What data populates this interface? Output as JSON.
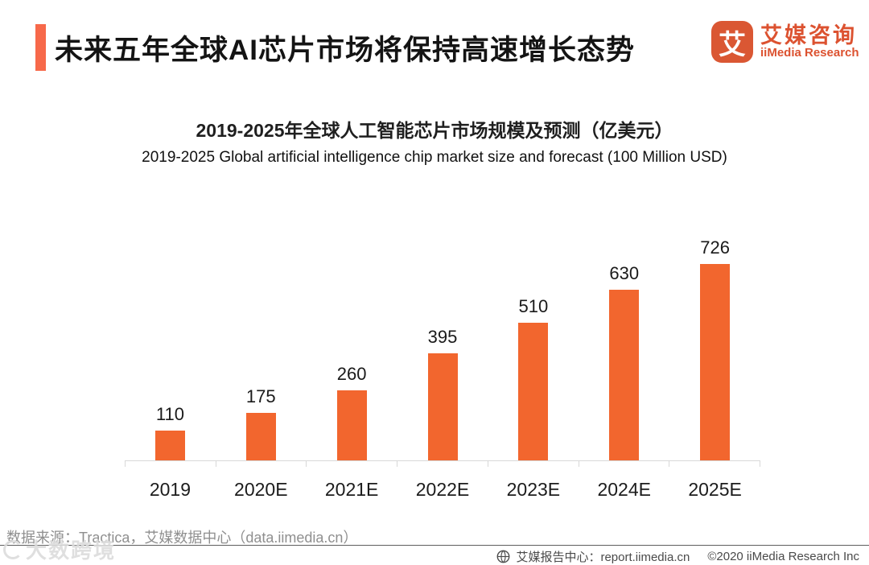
{
  "header": {
    "title": "未来五年全球AI芯片市场将保持高速增长态势",
    "logo": {
      "mark_glyph": "艾",
      "name_cn": "艾媒咨询",
      "name_en": "iiMedia Research"
    }
  },
  "chart_data": {
    "type": "bar",
    "title": "2019-2025年全球人工智能芯片市场规模及预测（亿美元）",
    "subtitle": "2019-2025 Global artificial intelligence chip market size and forecast (100 Million USD)",
    "categories": [
      "2019",
      "2020E",
      "2021E",
      "2022E",
      "2023E",
      "2024E",
      "2025E"
    ],
    "values": [
      110,
      175,
      260,
      395,
      510,
      630,
      726
    ],
    "ylim": [
      0,
      760
    ],
    "grid": "off",
    "legend": "none",
    "data_labels": "above bars",
    "bar_color": "#F2662E"
  },
  "footer": {
    "source": "数据来源：Tractica，艾媒数据中心（data.iimedia.cn）",
    "report_center": "艾媒报告中心：report.iimedia.cn",
    "copyright": "©2020   iiMedia Research  Inc",
    "watermark": "大数跨境"
  },
  "colors": {
    "accent_bar": "#F7694A",
    "logo_orange": "#DA5733",
    "bar_orange": "#F2662E",
    "axis_gray": "#D8D8D8",
    "source_gray": "#8F8F8F",
    "footer_gray": "#4A4A4A"
  }
}
